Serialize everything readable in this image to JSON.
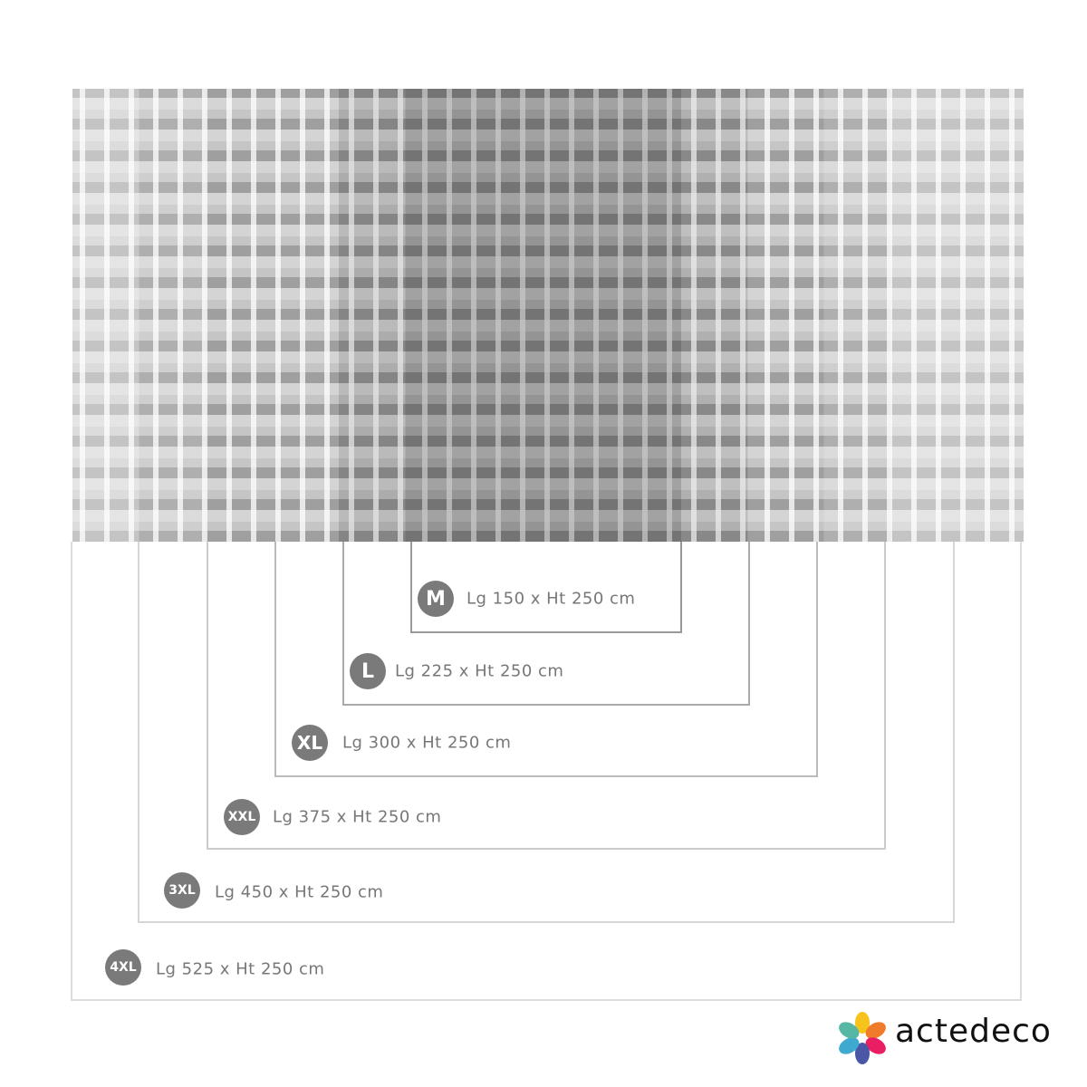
{
  "sizes": [
    {
      "code": "M",
      "label": "Lg 150 x Ht 250 cm"
    },
    {
      "code": "L",
      "label": "Lg 225 x Ht 250 cm"
    },
    {
      "code": "XL",
      "label": "Lg 300 x Ht 250 cm"
    },
    {
      "code": "XXL",
      "label": "Lg 375 x Ht 250 cm"
    },
    {
      "code": "3XL",
      "label": "Lg 450 x Ht 250 cm"
    },
    {
      "code": "4XL",
      "label": "Lg 525 x Ht 250 cm"
    }
  ],
  "brand": {
    "name": "actedeco",
    "petal_colors": [
      "#f6c21c",
      "#ef7b2b",
      "#e91e63",
      "#4a56a6",
      "#3fa9d0",
      "#55b7a4"
    ]
  },
  "colors": {
    "badge": "#7a7a7a",
    "text": "#777777"
  }
}
